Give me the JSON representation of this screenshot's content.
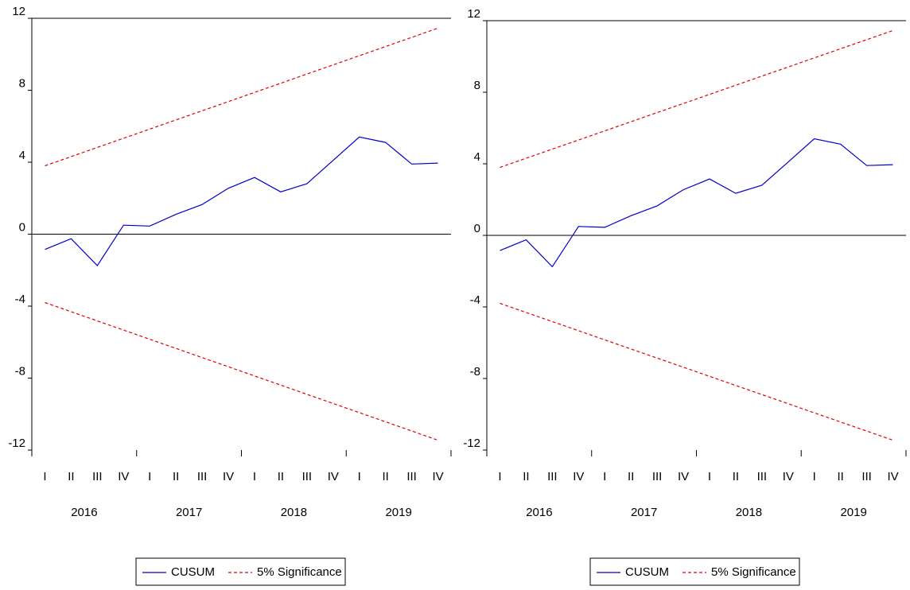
{
  "colors": {
    "cusum": "#0000cc",
    "significance": "#e00000",
    "axis": "#000000"
  },
  "chart_data": [
    {
      "type": "line",
      "title": "",
      "xlabel": "",
      "ylabel": "",
      "ylim": [
        -12,
        12
      ],
      "yticks": [
        "12",
        "8",
        "4",
        "0",
        "-4",
        "-8",
        "-12"
      ],
      "quarters": [
        "I",
        "II",
        "III",
        "IV",
        "I",
        "II",
        "III",
        "IV",
        "I",
        "II",
        "III",
        "IV",
        "I",
        "II",
        "III",
        "IV"
      ],
      "years": [
        "2016",
        "2017",
        "2018",
        "2019"
      ],
      "legend": [
        "CUSUM",
        "5% Significance"
      ],
      "legend_position": "bottom",
      "series": [
        {
          "name": "CUSUM",
          "style": "solid",
          "values": [
            -0.85,
            -0.25,
            -1.75,
            0.5,
            0.45,
            1.1,
            1.65,
            2.55,
            3.15,
            2.35,
            2.8,
            4.1,
            5.4,
            5.1,
            3.9,
            3.95
          ]
        },
        {
          "name": "5% Significance",
          "style": "dashed",
          "values": [
            3.8,
            4.31,
            4.82,
            5.33,
            5.84,
            6.35,
            6.86,
            7.37,
            7.88,
            8.39,
            8.9,
            9.41,
            9.92,
            10.43,
            10.94,
            11.45
          ]
        },
        {
          "name": "5% Significance",
          "style": "dashed",
          "values": [
            -3.8,
            -4.31,
            -4.82,
            -5.33,
            -5.84,
            -6.35,
            -6.86,
            -7.37,
            -7.88,
            -8.39,
            -8.9,
            -9.41,
            -9.92,
            -10.43,
            -10.94,
            -11.45
          ]
        }
      ]
    },
    {
      "type": "line",
      "title": "",
      "xlabel": "",
      "ylabel": "",
      "ylim": [
        -12,
        12
      ],
      "yticks": [
        "12",
        "8",
        "4",
        "0",
        "-4",
        "-8",
        "-12"
      ],
      "quarters": [
        "I",
        "II",
        "III",
        "IV",
        "I",
        "II",
        "III",
        "IV",
        "I",
        "II",
        "III",
        "IV",
        "I",
        "II",
        "III",
        "IV"
      ],
      "years": [
        "2016",
        "2017",
        "2018",
        "2019"
      ],
      "legend": [
        "CUSUM",
        "5% Significance"
      ],
      "legend_position": "bottom",
      "series": [
        {
          "name": "CUSUM",
          "style": "solid",
          "values": [
            -0.85,
            -0.25,
            -1.75,
            0.5,
            0.45,
            1.1,
            1.65,
            2.55,
            3.15,
            2.35,
            2.8,
            4.1,
            5.4,
            5.1,
            3.9,
            3.95
          ]
        },
        {
          "name": "5% Significance",
          "style": "dashed",
          "values": [
            3.8,
            4.31,
            4.82,
            5.33,
            5.84,
            6.35,
            6.86,
            7.37,
            7.88,
            8.39,
            8.9,
            9.41,
            9.92,
            10.43,
            10.94,
            11.45
          ]
        },
        {
          "name": "5% Significance",
          "style": "dashed",
          "values": [
            -3.8,
            -4.31,
            -4.82,
            -5.33,
            -5.84,
            -6.35,
            -6.86,
            -7.37,
            -7.88,
            -8.39,
            -8.9,
            -9.41,
            -9.92,
            -10.43,
            -10.94,
            -11.45
          ]
        }
      ]
    }
  ]
}
